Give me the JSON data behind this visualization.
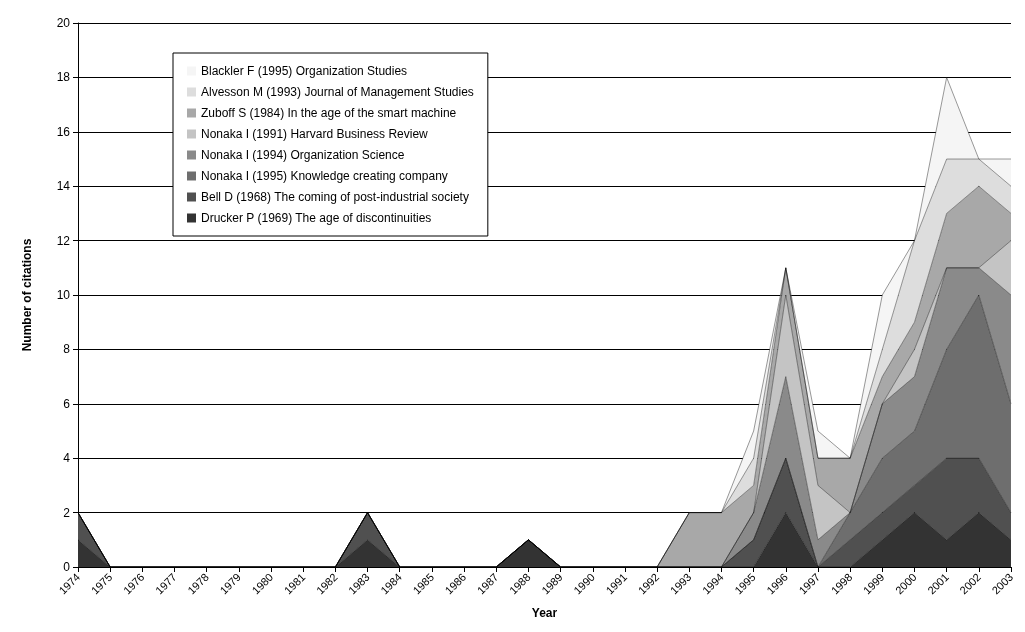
{
  "chart_data": {
    "type": "area",
    "stacked": true,
    "xlabel": "Year",
    "ylabel": "Number of citations",
    "categories": [
      "1974",
      "1975",
      "1976",
      "1977",
      "1978",
      "1979",
      "1980",
      "1981",
      "1982",
      "1983",
      "1984",
      "1985",
      "1986",
      "1987",
      "1988",
      "1989",
      "1990",
      "1991",
      "1992",
      "1993",
      "1994",
      "1995",
      "1996",
      "1997",
      "1998",
      "1999",
      "2000",
      "2001",
      "2002",
      "2003"
    ],
    "series": [
      {
        "name": "Drucker P (1969) The age of discontinuities",
        "color": "#333333",
        "values": [
          1,
          0,
          0,
          0,
          0,
          0,
          0,
          0,
          0,
          1,
          0,
          0,
          0,
          0,
          1,
          0,
          0,
          0,
          0,
          0,
          0,
          0,
          2,
          0,
          0,
          1,
          2,
          1,
          2,
          1
        ]
      },
      {
        "name": "Bell D (1968) The coming of post-industrial society",
        "color": "#505050",
        "values": [
          1,
          0,
          0,
          0,
          0,
          0,
          0,
          0,
          0,
          1,
          0,
          0,
          0,
          0,
          0,
          0,
          0,
          0,
          0,
          0,
          0,
          1,
          2,
          0,
          1,
          1,
          1,
          3,
          2,
          1
        ]
      },
      {
        "name": "Nonaka I (1995) Knowledge creating company",
        "color": "#6e6e6e",
        "values": [
          0,
          0,
          0,
          0,
          0,
          0,
          0,
          0,
          0,
          0,
          0,
          0,
          0,
          0,
          0,
          0,
          0,
          0,
          0,
          0,
          0,
          0,
          0,
          0,
          1,
          2,
          2,
          4,
          6,
          4
        ]
      },
      {
        "name": "Nonaka I (1994) Organization Science",
        "color": "#8a8a8a",
        "values": [
          0,
          0,
          0,
          0,
          0,
          0,
          0,
          0,
          0,
          0,
          0,
          0,
          0,
          0,
          0,
          0,
          0,
          0,
          0,
          0,
          0,
          1,
          3,
          1,
          0,
          2,
          2,
          3,
          1,
          4
        ]
      },
      {
        "name": "Nonaka I (1991) Harvard Business Review",
        "color": "#c4c4c4",
        "values": [
          0,
          0,
          0,
          0,
          0,
          0,
          0,
          0,
          0,
          0,
          0,
          0,
          0,
          0,
          0,
          0,
          0,
          0,
          0,
          0,
          0,
          0,
          3,
          2,
          0,
          0,
          1,
          0,
          0,
          2
        ]
      },
      {
        "name": "Zuboff S (1984) In the age of the smart machine",
        "color": "#a8a8a8",
        "values": [
          0,
          0,
          0,
          0,
          0,
          0,
          0,
          0,
          0,
          0,
          0,
          0,
          0,
          0,
          0,
          0,
          0,
          0,
          0,
          2,
          2,
          1,
          1,
          1,
          2,
          1,
          1,
          2,
          3,
          1
        ]
      },
      {
        "name": "Alvesson M (1993) Journal of Management Studies",
        "color": "#dddddd",
        "values": [
          0,
          0,
          0,
          0,
          0,
          0,
          0,
          0,
          0,
          0,
          0,
          0,
          0,
          0,
          0,
          0,
          0,
          0,
          0,
          0,
          0,
          1,
          0,
          0,
          0,
          1,
          3,
          2,
          1,
          1
        ]
      },
      {
        "name": "Blackler F (1995) Organization Studies",
        "color": "#f5f5f5",
        "values": [
          0,
          0,
          0,
          0,
          0,
          0,
          0,
          0,
          0,
          0,
          0,
          0,
          0,
          0,
          0,
          0,
          0,
          0,
          0,
          0,
          0,
          1,
          0,
          1,
          0,
          2,
          0,
          3,
          0,
          1
        ]
      }
    ],
    "ylim": [
      0,
      20
    ],
    "yticks": [
      0,
      2,
      4,
      6,
      8,
      10,
      12,
      14,
      16,
      18,
      20
    ],
    "grid": "y",
    "legend": "top left"
  }
}
